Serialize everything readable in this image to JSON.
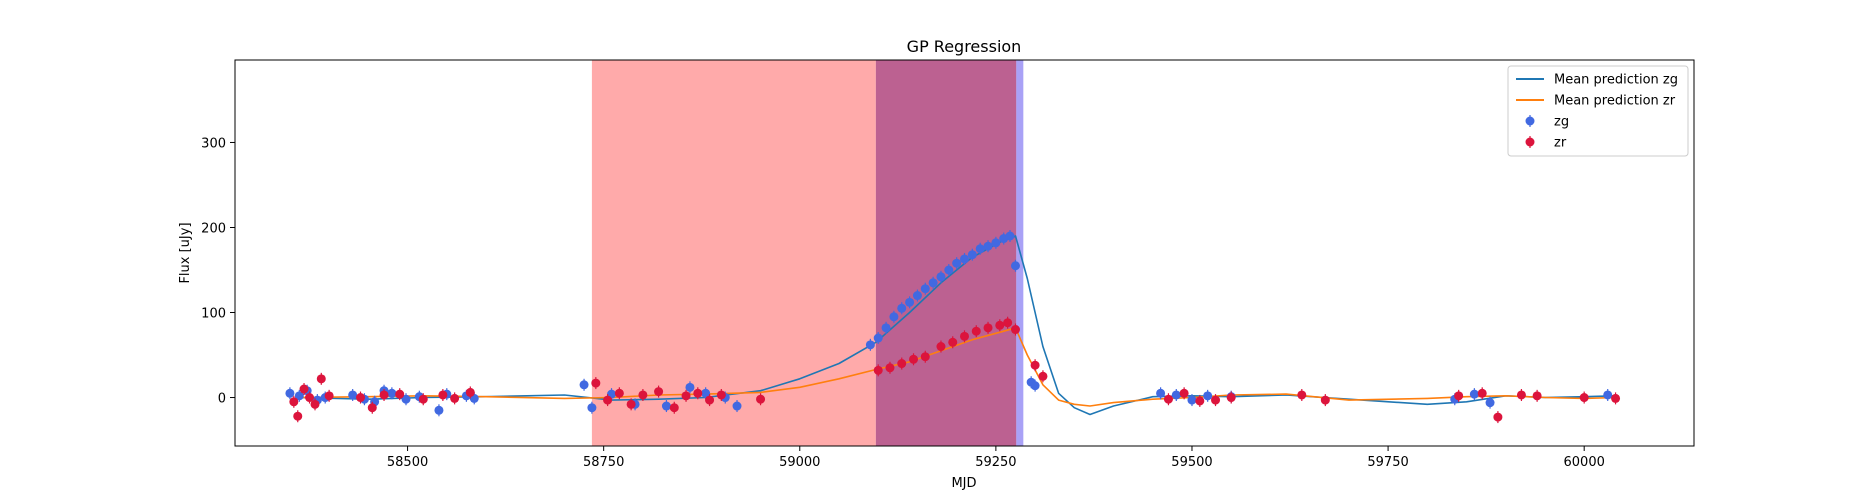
{
  "chart_data": {
    "type": "scatter",
    "title": "GP Regression",
    "xlabel": "MJD",
    "ylabel": "Flux [uJy]",
    "xlim": [
      58280,
      60140
    ],
    "ylim": [
      -57,
      397
    ],
    "x_ticks": [
      58500,
      58750,
      59000,
      59250,
      59500,
      59750,
      60000
    ],
    "y_ticks": [
      0,
      100,
      200,
      300
    ],
    "grid": false,
    "legend_position": "top-right",
    "legend": [
      {
        "label": "Mean prediction zg",
        "kind": "line",
        "color": "#1f77b4"
      },
      {
        "label": "Mean prediction zr",
        "kind": "line",
        "color": "#ff7f0e"
      },
      {
        "label": "zg",
        "kind": "errorbar",
        "color": "#4169e1"
      },
      {
        "label": "zr",
        "kind": "errorbar",
        "color": "#dc143c"
      }
    ],
    "shaded_regions": [
      {
        "x0": 58735,
        "x1": 59097,
        "color": "#ff5555",
        "opacity": 0.5
      },
      {
        "x0": 59097,
        "x1": 59276,
        "color": "#b0457e",
        "opacity": 0.85
      },
      {
        "x0": 59276,
        "x1": 59285,
        "color": "#6f63f0",
        "opacity": 0.6
      }
    ],
    "series": [
      {
        "name": "Mean prediction zg",
        "kind": "line",
        "color": "#1f77b4",
        "x": [
          58360,
          58450,
          58520,
          58600,
          58700,
          58760,
          58820,
          58880,
          58950,
          59000,
          59050,
          59097,
          59140,
          59180,
          59220,
          59260,
          59275,
          59290,
          59310,
          59330,
          59350,
          59370,
          59400,
          59450,
          59500,
          59550,
          59620,
          59700,
          59800,
          59850,
          59900,
          59950,
          60000,
          60040
        ],
        "y": [
          0,
          -2,
          0,
          1,
          3,
          -3,
          -2,
          0,
          8,
          22,
          40,
          65,
          100,
          135,
          165,
          185,
          190,
          140,
          60,
          5,
          -12,
          -20,
          -10,
          1,
          2,
          1,
          3,
          -2,
          -8,
          -5,
          2,
          0,
          1,
          2
        ]
      },
      {
        "name": "Mean prediction zr",
        "kind": "line",
        "color": "#ff7f0e",
        "x": [
          58360,
          58450,
          58520,
          58600,
          58700,
          58760,
          58820,
          58880,
          58950,
          59000,
          59050,
          59097,
          59140,
          59180,
          59220,
          59260,
          59275,
          59290,
          59310,
          59330,
          59350,
          59370,
          59400,
          59450,
          59500,
          59550,
          59620,
          59700,
          59800,
          59850,
          59900,
          59950,
          60000,
          60040
        ],
        "y": [
          0,
          1,
          2,
          1,
          -1,
          0,
          3,
          4,
          6,
          12,
          22,
          33,
          42,
          55,
          68,
          78,
          82,
          50,
          15,
          -3,
          -8,
          -10,
          -6,
          -2,
          0,
          3,
          4,
          -3,
          -1,
          1,
          2,
          0,
          -1,
          0
        ]
      },
      {
        "name": "zg",
        "kind": "scatter",
        "color": "#4169e1",
        "x": [
          58350,
          58362,
          58372,
          58385,
          58395,
          58430,
          58445,
          58458,
          58470,
          58480,
          58498,
          58515,
          58540,
          58550,
          58575,
          58585,
          58725,
          58735,
          58760,
          58790,
          58830,
          58860,
          58880,
          58905,
          58920,
          59090,
          59100,
          59110,
          59120,
          59130,
          59140,
          59150,
          59160,
          59170,
          59180,
          59190,
          59200,
          59210,
          59220,
          59230,
          59240,
          59250,
          59260,
          59268,
          59275,
          59295,
          59300,
          59460,
          59480,
          59500,
          59520,
          59550,
          59835,
          59860,
          59880,
          60030
        ],
        "y": [
          5,
          2,
          8,
          -3,
          0,
          3,
          -2,
          -5,
          8,
          5,
          -2,
          1,
          -15,
          4,
          2,
          -1,
          15,
          -12,
          4,
          -8,
          -10,
          12,
          5,
          0,
          -10,
          62,
          70,
          82,
          95,
          105,
          112,
          120,
          128,
          135,
          142,
          150,
          158,
          163,
          168,
          175,
          178,
          182,
          187,
          190,
          155,
          18,
          14,
          5,
          3,
          -3,
          2,
          1,
          -2,
          4,
          -6,
          3
        ]
      },
      {
        "name": "zr",
        "kind": "scatter",
        "color": "#dc143c",
        "x": [
          58355,
          58360,
          58368,
          58375,
          58382,
          58390,
          58400,
          58440,
          58455,
          58470,
          58490,
          58520,
          58545,
          58560,
          58580,
          58740,
          58755,
          58770,
          58785,
          58800,
          58820,
          58840,
          58855,
          58870,
          58885,
          58900,
          58950,
          59100,
          59115,
          59130,
          59145,
          59160,
          59180,
          59195,
          59210,
          59225,
          59240,
          59255,
          59265,
          59275,
          59300,
          59310,
          59470,
          59490,
          59510,
          59530,
          59550,
          59640,
          59670,
          59840,
          59870,
          59890,
          59920,
          59940,
          60000,
          60040
        ],
        "y": [
          -5,
          -22,
          10,
          0,
          -8,
          22,
          2,
          0,
          -12,
          3,
          4,
          -2,
          3,
          -1,
          6,
          17,
          -3,
          5,
          -8,
          3,
          7,
          -12,
          2,
          5,
          -3,
          3,
          -2,
          32,
          35,
          40,
          45,
          48,
          60,
          65,
          72,
          78,
          82,
          85,
          88,
          80,
          38,
          25,
          -2,
          5,
          -4,
          -3,
          0,
          3,
          -3,
          2,
          5,
          -23,
          3,
          2,
          0,
          -1
        ]
      }
    ]
  }
}
